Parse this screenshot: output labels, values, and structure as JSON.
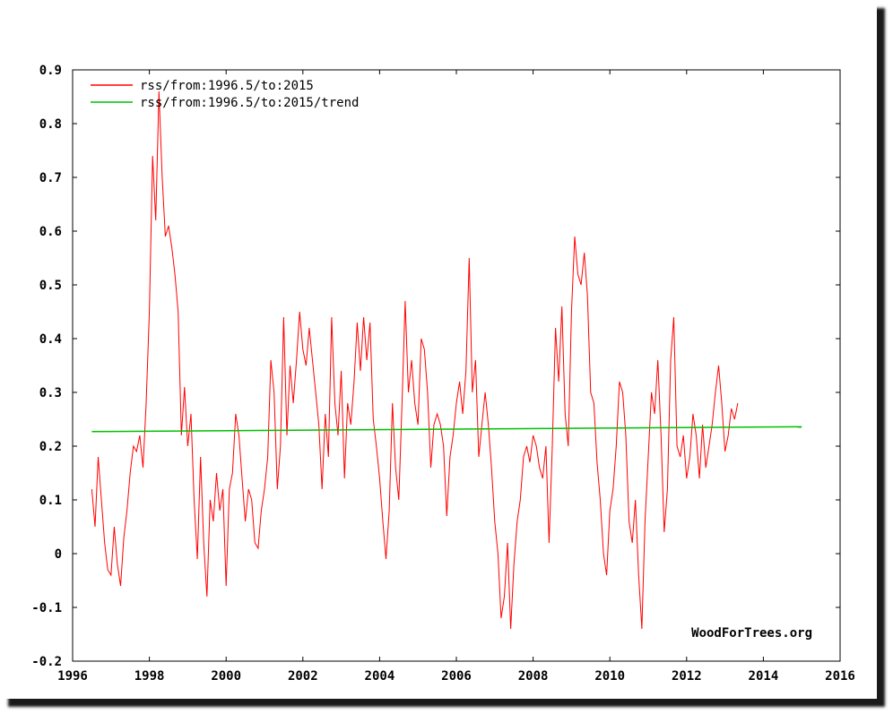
{
  "chart_data": {
    "type": "line",
    "title": "",
    "xlabel": "",
    "ylabel": "",
    "xlim": [
      1996,
      2016
    ],
    "ylim": [
      -0.2,
      0.9
    ],
    "x_ticks": [
      "1996",
      "1998",
      "2000",
      "2002",
      "2004",
      "2006",
      "2008",
      "2010",
      "2012",
      "2014",
      "2016"
    ],
    "y_ticks": [
      "-0.2",
      "-0.1",
      "0",
      "0.1",
      "0.2",
      "0.3",
      "0.4",
      "0.5",
      "0.6",
      "0.7",
      "0.8",
      "0.9"
    ],
    "grid": false,
    "legend_position": "top-left",
    "credit": "WoodForTrees.org",
    "series": [
      {
        "name": "rss/from:1996.5/to:2015",
        "color": "#ff0000",
        "x_start": 1996.5,
        "x_step": 0.083333,
        "values": [
          0.12,
          0.05,
          0.18,
          0.1,
          0.02,
          -0.03,
          -0.04,
          0.05,
          -0.02,
          -0.06,
          0.03,
          0.08,
          0.15,
          0.2,
          0.19,
          0.22,
          0.16,
          0.28,
          0.45,
          0.74,
          0.62,
          0.86,
          0.7,
          0.59,
          0.61,
          0.57,
          0.52,
          0.45,
          0.22,
          0.31,
          0.2,
          0.26,
          0.1,
          -0.01,
          0.18,
          0.02,
          -0.08,
          0.1,
          0.06,
          0.15,
          0.08,
          0.12,
          -0.06,
          0.12,
          0.15,
          0.26,
          0.22,
          0.14,
          0.06,
          0.12,
          0.1,
          0.02,
          0.01,
          0.08,
          0.12,
          0.18,
          0.36,
          0.3,
          0.12,
          0.2,
          0.44,
          0.22,
          0.35,
          0.28,
          0.36,
          0.45,
          0.38,
          0.35,
          0.42,
          0.36,
          0.3,
          0.24,
          0.12,
          0.26,
          0.18,
          0.44,
          0.28,
          0.22,
          0.34,
          0.14,
          0.28,
          0.24,
          0.32,
          0.43,
          0.34,
          0.44,
          0.36,
          0.43,
          0.25,
          0.2,
          0.14,
          0.06,
          -0.01,
          0.08,
          0.28,
          0.16,
          0.1,
          0.28,
          0.47,
          0.3,
          0.36,
          0.28,
          0.24,
          0.4,
          0.38,
          0.3,
          0.16,
          0.24,
          0.26,
          0.24,
          0.2,
          0.07,
          0.18,
          0.22,
          0.28,
          0.32,
          0.26,
          0.34,
          0.55,
          0.3,
          0.36,
          0.18,
          0.24,
          0.3,
          0.24,
          0.16,
          0.06,
          0.0,
          -0.12,
          -0.08,
          0.02,
          -0.14,
          -0.02,
          0.06,
          0.1,
          0.18,
          0.2,
          0.17,
          0.22,
          0.2,
          0.16,
          0.14,
          0.2,
          0.02,
          0.2,
          0.42,
          0.32,
          0.46,
          0.26,
          0.2,
          0.45,
          0.59,
          0.52,
          0.5,
          0.56,
          0.48,
          0.3,
          0.28,
          0.17,
          0.1,
          0.0,
          -0.04,
          0.08,
          0.12,
          0.2,
          0.32,
          0.3,
          0.22,
          0.06,
          0.02,
          0.1,
          -0.04,
          -0.14,
          0.06,
          0.18,
          0.3,
          0.26,
          0.36,
          0.22,
          0.04,
          0.12,
          0.36,
          0.44,
          0.2,
          0.18,
          0.22,
          0.14,
          0.18,
          0.26,
          0.22,
          0.14,
          0.24,
          0.16,
          0.2,
          0.24,
          0.3,
          0.35,
          0.28,
          0.19,
          0.22,
          0.27,
          0.25,
          0.28
        ]
      },
      {
        "name": "rss/from:1996.5/to:2015/trend",
        "color": "#00c000",
        "x": [
          1996.5,
          2015.0
        ],
        "values": [
          0.227,
          0.236
        ]
      }
    ]
  }
}
